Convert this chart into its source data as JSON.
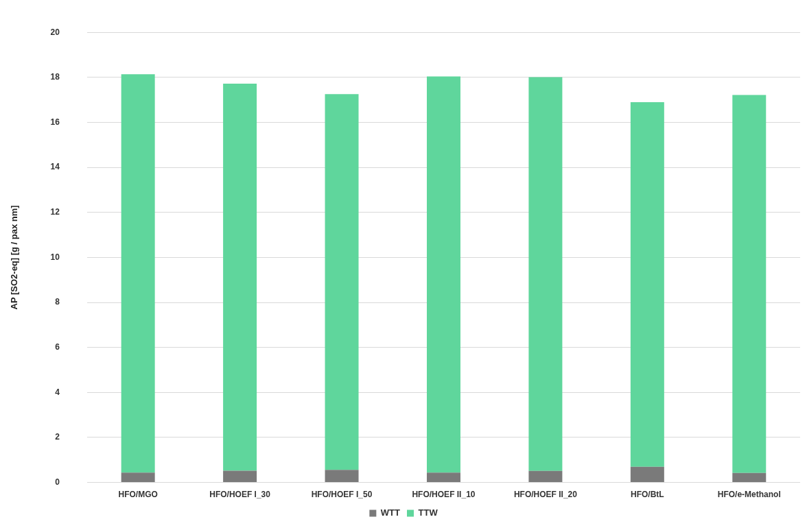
{
  "chart_data": {
    "type": "bar",
    "stacked": true,
    "ylabel": "AP [SO2-eq] [g / pax nm]",
    "categories": [
      "HFO/MGO",
      "HFO/HOEF I_30",
      "HFO/HOEF I_50",
      "HFO/HOEF II_10",
      "HFO/HOEF II_20",
      "HFO/BtL",
      "HFO/e-Methanol"
    ],
    "series": [
      {
        "name": "WTT",
        "color": "#7a7a7a",
        "values": [
          0.44,
          0.52,
          0.56,
          0.44,
          0.51,
          0.7,
          0.42
        ]
      },
      {
        "name": "TTW",
        "color": "#5fd69c",
        "values": [
          17.7,
          17.2,
          16.7,
          17.6,
          17.5,
          16.2,
          16.8
        ]
      }
    ],
    "ylim": [
      0,
      20
    ],
    "yticks": [
      0,
      2,
      4,
      6,
      8,
      10,
      12,
      14,
      16,
      18,
      20
    ],
    "grid": "y",
    "legend": "bottom"
  }
}
